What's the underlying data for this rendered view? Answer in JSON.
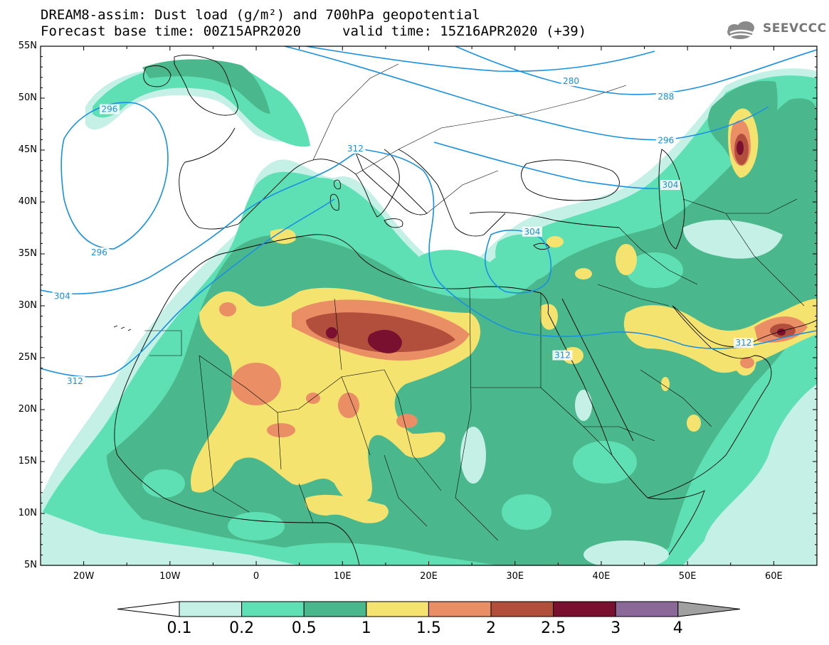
{
  "title": {
    "line1": "DREAM8-assim: Dust load (g/m²) and 700hPa geopotential",
    "line2_left": "Forecast base time: 00Z15APR2020",
    "line2_right": "valid time: 15Z16APR2020 (+39)"
  },
  "logo": {
    "text": "SEEVCCC",
    "icon": "cloud-icon"
  },
  "axes": {
    "lat_labels": [
      "55N",
      "50N",
      "45N",
      "40N",
      "35N",
      "30N",
      "25N",
      "20N",
      "15N",
      "10N",
      "5N"
    ],
    "lon_labels": [
      "20W",
      "10W",
      "0",
      "10E",
      "20E",
      "30E",
      "40E",
      "50E",
      "60E"
    ],
    "lon_range": [
      -25,
      65
    ],
    "lat_range": [
      5,
      55
    ]
  },
  "colorbar": {
    "labels": [
      "0.1",
      "0.2",
      "0.5",
      "1",
      "1.5",
      "2",
      "2.5",
      "3",
      "4"
    ],
    "colors": [
      "#ffffff",
      "#c4f0e6",
      "#5ee0b4",
      "#4ab88c",
      "#f4e36e",
      "#ea8e66",
      "#b14e3c",
      "#7a1030",
      "#8a6898",
      "#a0a0a0"
    ]
  },
  "contour_labels": [
    {
      "text": "280",
      "lon": 36.5,
      "lat": 51.5
    },
    {
      "text": "288",
      "lon": 47.5,
      "lat": 50.0
    },
    {
      "text": "296",
      "lon": 47.5,
      "lat": 45.8
    },
    {
      "text": "296",
      "lon": -17,
      "lat": 48.8
    },
    {
      "text": "296",
      "lon": -18.2,
      "lat": 35.0
    },
    {
      "text": "304",
      "lon": -22.5,
      "lat": 30.8
    },
    {
      "text": "304",
      "lon": 32,
      "lat": 37.0
    },
    {
      "text": "304",
      "lon": 48,
      "lat": 41.5
    },
    {
      "text": "312",
      "lon": -21,
      "lat": 22.6
    },
    {
      "text": "312",
      "lon": 11.5,
      "lat": 45.0
    },
    {
      "text": "312",
      "lon": 35.5,
      "lat": 25.1
    },
    {
      "text": "312",
      "lon": 56.5,
      "lat": 26.3
    }
  ],
  "chart_data": {
    "type": "heatmap",
    "title": "DREAM8-assim: Dust load (g/m²) and 700hPa geopotential",
    "variable": "Dust load (g/m²)",
    "overlay": "700hPa geopotential contours",
    "levels": [
      0.1,
      0.2,
      0.5,
      1,
      1.5,
      2,
      2.5,
      3,
      4
    ],
    "contour_values": [
      280,
      288,
      296,
      304,
      312
    ],
    "lon_range": [
      -25,
      65
    ],
    "lat_range": [
      5,
      55
    ],
    "maxima": [
      {
        "lon": 15,
        "lat": 26.5,
        "value": 3
      },
      {
        "lon": 56,
        "lat": 45,
        "value": 3
      },
      {
        "lon": 60.5,
        "lat": 27,
        "value": 3
      }
    ]
  }
}
